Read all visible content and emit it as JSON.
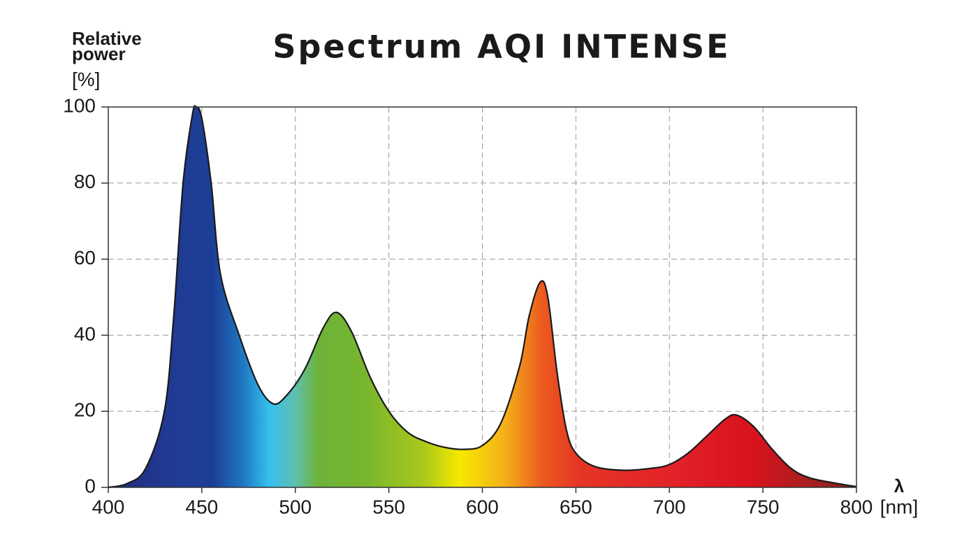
{
  "chart_data": {
    "type": "area",
    "title": "Spectrum AQI INTENSE",
    "ylabel": "Relative power",
    "yunit": "[%]",
    "xlabel": "λ",
    "xunit": "[nm]",
    "x": [
      400,
      410,
      420,
      430,
      435,
      440,
      445,
      447,
      450,
      455,
      460,
      470,
      480,
      488,
      495,
      505,
      515,
      522,
      530,
      540,
      550,
      560,
      570,
      580,
      590,
      600,
      610,
      620,
      625,
      631,
      635,
      640,
      645,
      650,
      660,
      675,
      690,
      700,
      710,
      720,
      730,
      736,
      745,
      755,
      765,
      775,
      790,
      800
    ],
    "values": [
      0,
      1,
      5,
      20,
      45,
      80,
      98,
      100,
      97,
      80,
      56,
      40,
      27,
      22,
      24,
      31,
      42,
      46,
      41,
      29,
      20,
      14.5,
      12,
      10.5,
      10,
      11,
      17,
      32,
      45,
      54,
      50,
      30,
      15,
      9,
      5.5,
      4.5,
      5,
      6,
      9,
      13.5,
      18,
      19,
      16,
      10,
      5,
      2.5,
      1,
      0.2
    ],
    "xlim": [
      400,
      800
    ],
    "xticks": [
      400,
      450,
      500,
      550,
      600,
      650,
      700,
      750,
      800
    ],
    "ylim": [
      0,
      100
    ],
    "yticks": [
      0,
      20,
      40,
      60,
      80,
      100
    ],
    "grid": true,
    "line_color": "#1a1a1a"
  }
}
